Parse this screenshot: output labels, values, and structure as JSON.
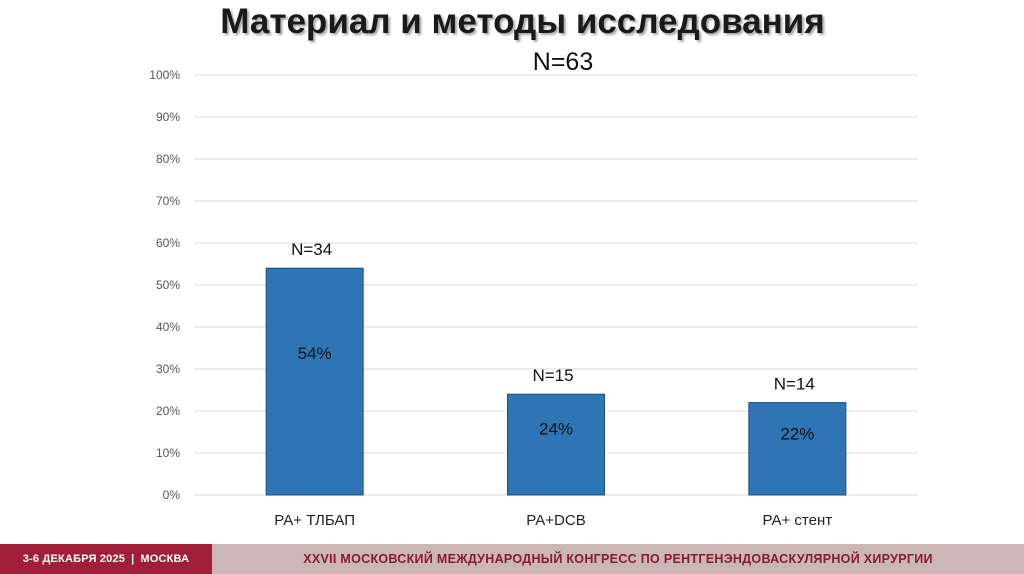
{
  "slide": {
    "title": "Материал и методы исследования"
  },
  "chart_data": {
    "type": "bar",
    "title": "N=63",
    "categories": [
      "РА+ ТЛБАП",
      "РА+DCB",
      "РА+ стент"
    ],
    "values": [
      54,
      24,
      22
    ],
    "value_labels": [
      "54%",
      "24%",
      "22%"
    ],
    "annotations": [
      "N=34",
      "N=15",
      "N=14"
    ],
    "ylim": [
      0,
      100
    ],
    "yticks": [
      "0%",
      "10%",
      "20%",
      "30%",
      "40%",
      "50%",
      "60%",
      "70%",
      "80%",
      "90%",
      "100%"
    ],
    "xlabel": "",
    "ylabel": "",
    "grid": true,
    "bar_color": "#2e75b6",
    "bar_edge_color": "#1f4e79",
    "grid_color": "#d9d9d9"
  },
  "footer": {
    "dates": "3-6 ДЕКАБРЯ 2025",
    "separator": "|",
    "city": "МОСКВА",
    "congress": "XXVII МОСКОВСКИЙ МЕЖДУНАРОДНЫЙ КОНГРЕСС ПО РЕНТГЕНЭНДОВАСКУЛЯРНОЙ ХИРУРГИИ",
    "left_color": "#a01e3a",
    "right_color": "#cbb7b5"
  }
}
